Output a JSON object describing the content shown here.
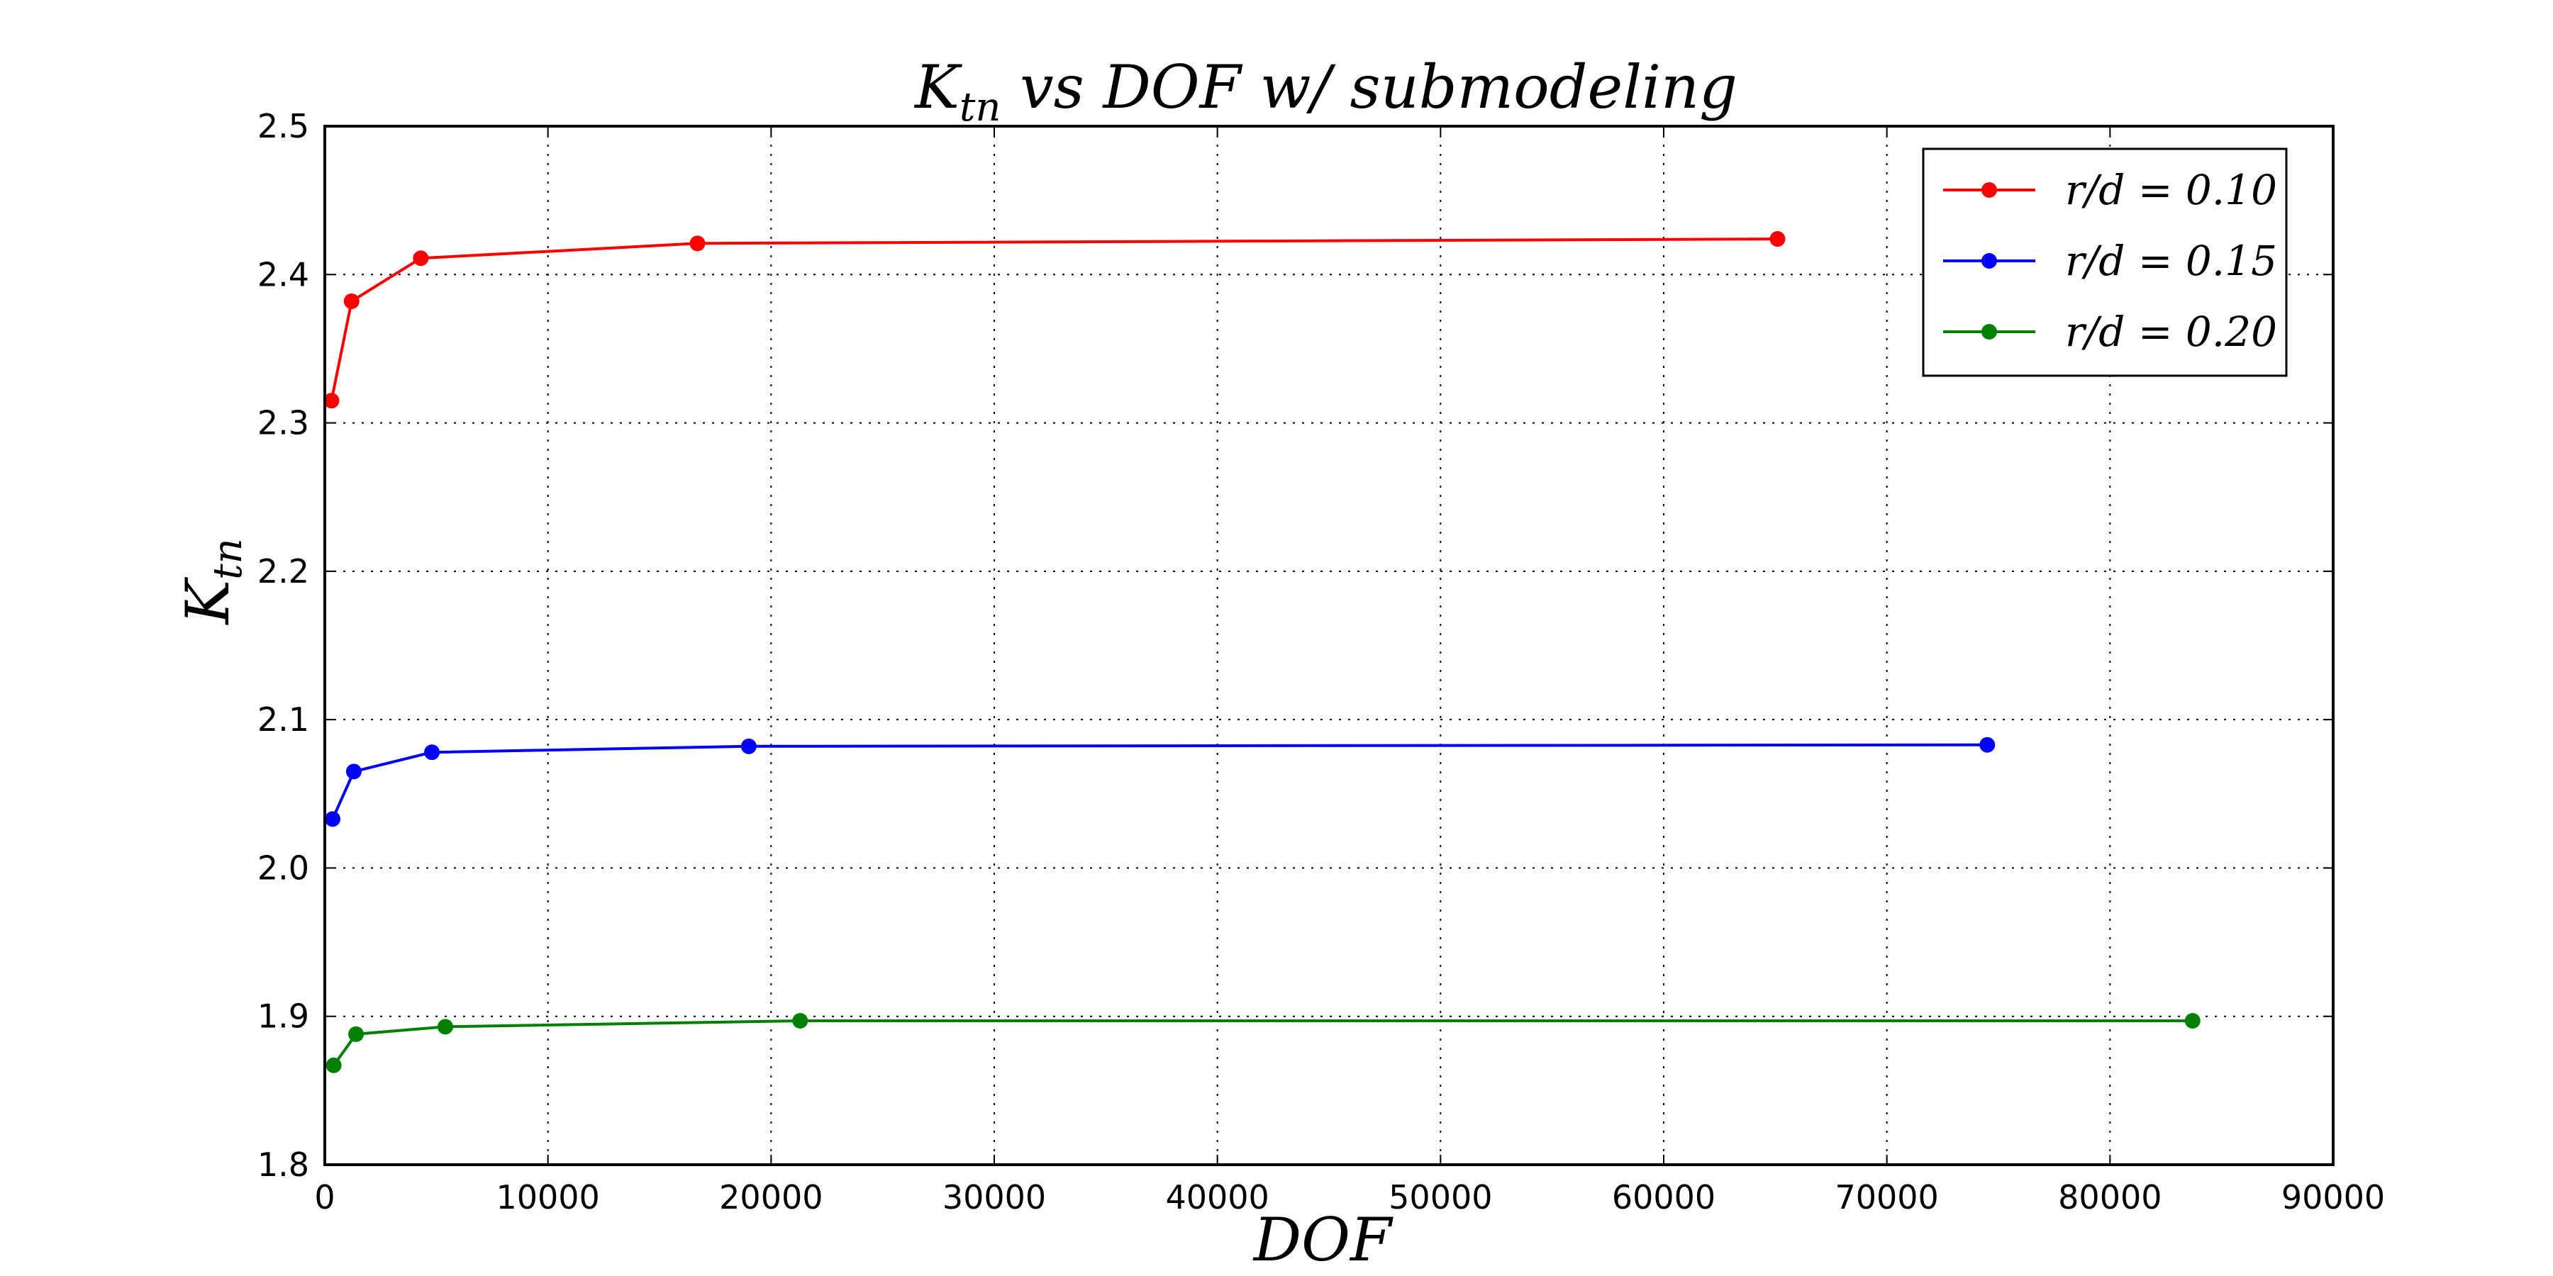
{
  "chart_data": {
    "type": "line",
    "title": {
      "main": "K",
      "sub": "tn",
      "rest": " vs DOF w/ submodeling"
    },
    "xlabel": "DOF",
    "ylabel": {
      "main": "K",
      "sub": "tn"
    },
    "xlim": [
      0,
      90000
    ],
    "ylim": [
      1.8,
      2.5
    ],
    "x_ticks": [
      0,
      10000,
      20000,
      30000,
      40000,
      50000,
      60000,
      70000,
      80000,
      90000
    ],
    "x_tick_labels": [
      "0",
      "10000",
      "20000",
      "30000",
      "40000",
      "50000",
      "60000",
      "70000",
      "80000",
      "90000"
    ],
    "y_ticks": [
      1.8,
      1.9,
      2.0,
      2.1,
      2.2,
      2.3,
      2.4,
      2.5
    ],
    "y_tick_labels": [
      "1.8",
      "1.9",
      "2.0",
      "2.1",
      "2.2",
      "2.3",
      "2.4",
      "2.5"
    ],
    "grid": true,
    "legend_position": "top-right",
    "series": [
      {
        "name": "r/d = 0.10",
        "color": "#ff0000",
        "x": [
          300,
          1200,
          4300,
          16700,
          65100
        ],
        "y": [
          2.315,
          2.382,
          2.411,
          2.421,
          2.424
        ]
      },
      {
        "name": "r/d = 0.15",
        "color": "#0000ff",
        "x": [
          350,
          1300,
          4800,
          19000,
          74500
        ],
        "y": [
          2.033,
          2.065,
          2.078,
          2.082,
          2.083
        ]
      },
      {
        "name": "r/d = 0.20",
        "color": "#008000",
        "x": [
          400,
          1400,
          5400,
          21300,
          83700
        ],
        "y": [
          1.867,
          1.888,
          1.893,
          1.897,
          1.897
        ]
      }
    ]
  }
}
